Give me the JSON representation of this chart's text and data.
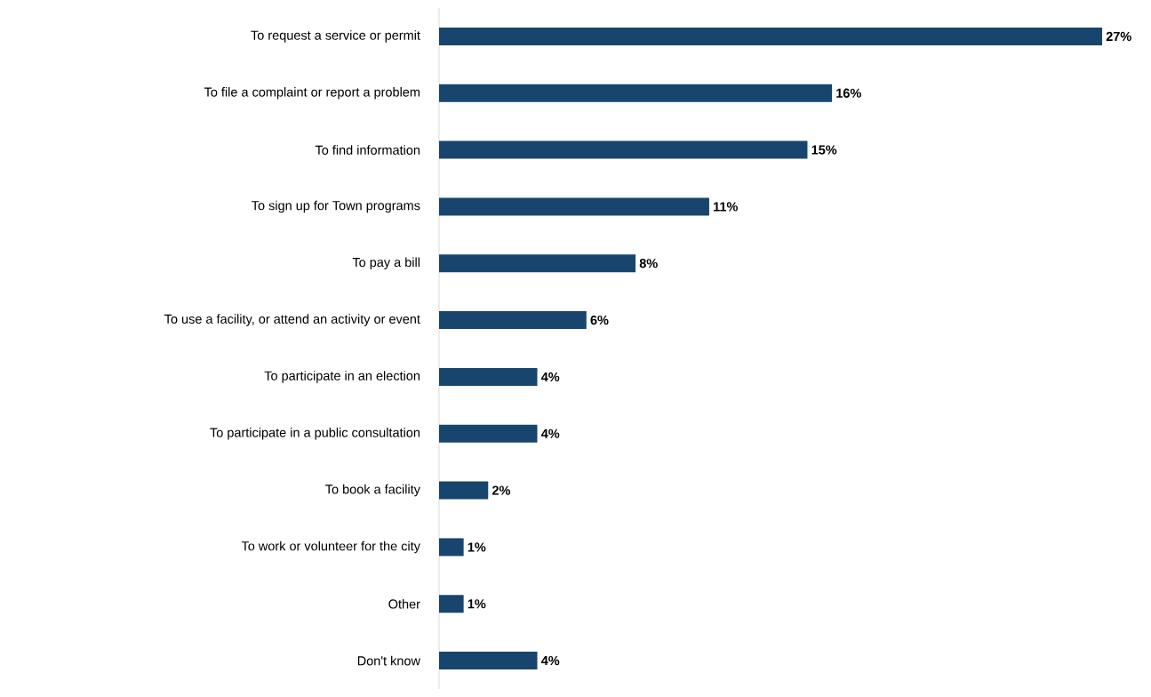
{
  "chart_data": {
    "type": "bar",
    "orientation": "horizontal",
    "categories": [
      "To request a service or permit",
      "To file a complaint or report a problem",
      "To find information",
      "To sign up for Town programs",
      "To pay a bill",
      "To use a facility, or attend an activity or event",
      "To participate in an election",
      "To participate in a public consultation",
      "To book a facility",
      "To work or volunteer for the city",
      "Other",
      "Don't know"
    ],
    "values": [
      27,
      16,
      15,
      11,
      8,
      6,
      4,
      4,
      2,
      1,
      1,
      4
    ],
    "value_labels": [
      "27%",
      "16%",
      "15%",
      "11%",
      "8%",
      "6%",
      "4%",
      "4%",
      "2%",
      "1%",
      "1%",
      "4%"
    ],
    "color": "#17456e"
  }
}
